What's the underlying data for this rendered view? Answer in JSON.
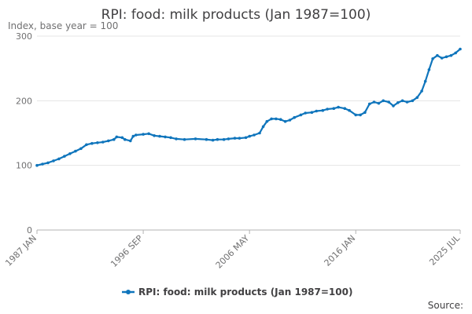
{
  "chart_data": {
    "type": "line",
    "title": "RPI: food: milk products (Jan 1987=100)",
    "ylabel": "Index, base year = 100",
    "xlabel": "",
    "x_range": [
      "1987-01",
      "2025-07"
    ],
    "x_ticks": [
      "1987 JAN",
      "1996 SEP",
      "2006 MAY",
      "2016 JAN",
      "2025 JUL"
    ],
    "ylim": [
      0,
      300
    ],
    "y_ticks": [
      0,
      100,
      200,
      300
    ],
    "grid": "horizontal",
    "legend_position": "bottom",
    "source_label": "Source:",
    "colors": {
      "series": "#0f75bc",
      "grid": "#e5e5e5",
      "axis": "#b3b3b3"
    },
    "series": [
      {
        "name": "RPI: food: milk products (Jan 1987=100)",
        "points": [
          [
            "1987-01",
            100
          ],
          [
            "1987-07",
            102
          ],
          [
            "1988-01",
            104
          ],
          [
            "1988-07",
            107
          ],
          [
            "1989-01",
            110
          ],
          [
            "1989-07",
            114
          ],
          [
            "1990-01",
            118
          ],
          [
            "1990-07",
            122
          ],
          [
            "1991-01",
            126
          ],
          [
            "1991-07",
            132
          ],
          [
            "1992-01",
            134
          ],
          [
            "1992-07",
            135
          ],
          [
            "1993-01",
            136
          ],
          [
            "1993-07",
            138
          ],
          [
            "1994-01",
            140
          ],
          [
            "1994-04",
            144
          ],
          [
            "1994-10",
            143
          ],
          [
            "1995-01",
            140
          ],
          [
            "1995-07",
            138
          ],
          [
            "1995-10",
            145
          ],
          [
            "1996-01",
            147
          ],
          [
            "1996-09",
            148
          ],
          [
            "1997-03",
            149
          ],
          [
            "1997-09",
            146
          ],
          [
            "1998-03",
            145
          ],
          [
            "1998-09",
            144
          ],
          [
            "1999-03",
            143
          ],
          [
            "1999-09",
            141
          ],
          [
            "2000-06",
            140
          ],
          [
            "2001-06",
            141
          ],
          [
            "2002-06",
            140
          ],
          [
            "2003-01",
            139
          ],
          [
            "2003-06",
            140
          ],
          [
            "2004-01",
            140
          ],
          [
            "2004-06",
            141
          ],
          [
            "2005-01",
            142
          ],
          [
            "2005-06",
            142
          ],
          [
            "2006-01",
            143
          ],
          [
            "2006-05",
            145
          ],
          [
            "2006-10",
            147
          ],
          [
            "2007-04",
            150
          ],
          [
            "2007-08",
            160
          ],
          [
            "2007-12",
            168
          ],
          [
            "2008-05",
            172
          ],
          [
            "2008-10",
            172
          ],
          [
            "2009-03",
            171
          ],
          [
            "2009-08",
            168
          ],
          [
            "2010-01",
            170
          ],
          [
            "2010-06",
            174
          ],
          [
            "2011-01",
            178
          ],
          [
            "2011-06",
            181
          ],
          [
            "2012-01",
            182
          ],
          [
            "2012-06",
            184
          ],
          [
            "2013-01",
            185
          ],
          [
            "2013-06",
            187
          ],
          [
            "2014-01",
            188
          ],
          [
            "2014-06",
            190
          ],
          [
            "2015-01",
            188
          ],
          [
            "2015-06",
            185
          ],
          [
            "2016-01",
            178
          ],
          [
            "2016-06",
            178
          ],
          [
            "2016-11",
            182
          ],
          [
            "2017-04",
            195
          ],
          [
            "2017-09",
            198
          ],
          [
            "2018-02",
            196
          ],
          [
            "2018-07",
            200
          ],
          [
            "2019-01",
            198
          ],
          [
            "2019-06",
            192
          ],
          [
            "2019-11",
            197
          ],
          [
            "2020-04",
            200
          ],
          [
            "2020-09",
            198
          ],
          [
            "2021-03",
            200
          ],
          [
            "2021-08",
            205
          ],
          [
            "2022-01",
            215
          ],
          [
            "2022-05",
            230
          ],
          [
            "2022-09",
            248
          ],
          [
            "2023-01",
            265
          ],
          [
            "2023-06",
            270
          ],
          [
            "2023-11",
            266
          ],
          [
            "2024-04",
            268
          ],
          [
            "2024-09",
            270
          ],
          [
            "2025-02",
            274
          ],
          [
            "2025-07",
            280
          ]
        ]
      }
    ]
  }
}
